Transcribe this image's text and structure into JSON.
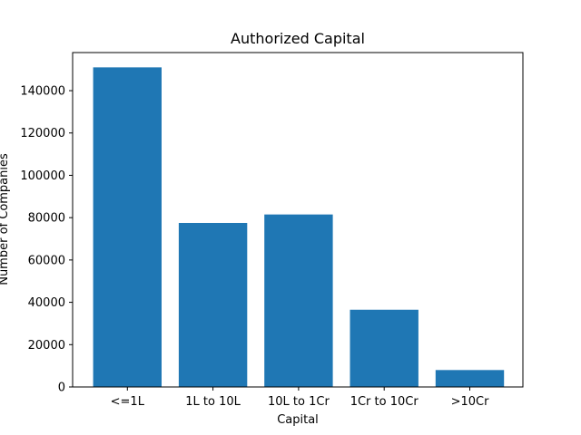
{
  "chart_data": {
    "type": "bar",
    "title": "Authorized Capital",
    "xlabel": "Capital",
    "ylabel": "Number of Companies",
    "categories": [
      "<=1L",
      "1L to 10L",
      "10L to 1Cr",
      "1Cr to 10Cr",
      ">10Cr"
    ],
    "values": [
      151000,
      77500,
      81500,
      36500,
      8000
    ],
    "ylim": [
      0,
      158000
    ],
    "yticks": [
      0,
      20000,
      40000,
      60000,
      80000,
      100000,
      120000,
      140000
    ],
    "grid": false,
    "bar_color": "#1f77b4"
  }
}
